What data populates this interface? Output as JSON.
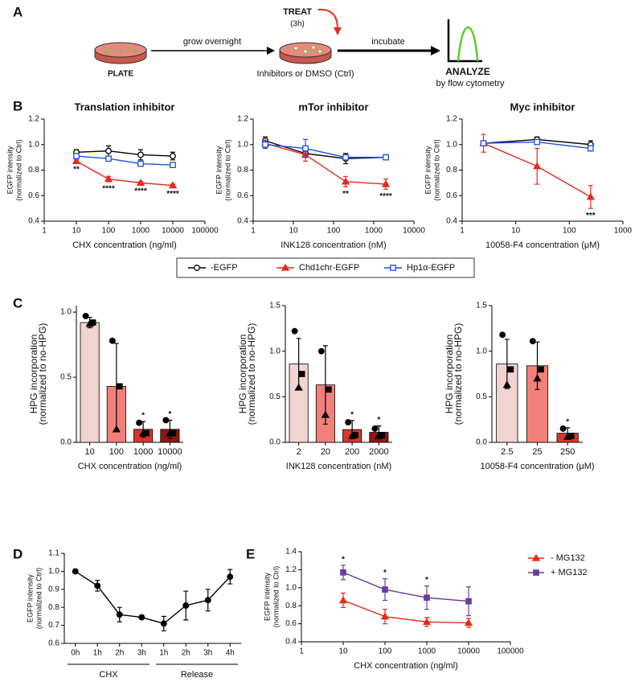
{
  "panels": [
    "A",
    "B",
    "C",
    "D",
    "E"
  ],
  "schematic": {
    "plate": "PLATE",
    "grow": "grow overnight",
    "treat": "TREAT",
    "treat_time": "(3h)",
    "treat_note": "Inhibitors or DMSO (Ctrl)",
    "incubate": "incubate",
    "analyze": "ANALYZE",
    "analyze_note": "by flow cytometry"
  },
  "chart_data": [
    {
      "type": "line",
      "title": "Translation inhibitor",
      "xlabel": "CHX concentration (ng/ml)",
      "ylabel": [
        "EGFP intensity",
        "(normalized to Ctrl)"
      ],
      "xscale": "log",
      "x": [
        10,
        100,
        1000,
        10000
      ],
      "xlim": [
        1,
        100000
      ],
      "xticks": [
        1,
        10,
        100,
        1000,
        10000,
        100000
      ],
      "ylim": [
        0.4,
        1.2
      ],
      "yticks": [
        0.4,
        0.6,
        0.8,
        {
          "value": 1.0,
          "label": "1.0"
        },
        1.2
      ],
      "legend": "below",
      "series": [
        {
          "name": "-EGFP",
          "color": "#000000",
          "marker": "circle-open",
          "values": [
            0.94,
            0.95,
            0.92,
            0.91
          ],
          "errors": [
            0.02,
            0.04,
            0.04,
            0.03
          ]
        },
        {
          "name": "Chd1chr-EGFP",
          "color": "#e8291c",
          "marker": "triangle",
          "values": [
            0.87,
            0.73,
            0.7,
            0.68
          ],
          "errors": [
            0.01,
            0.02,
            0.01,
            0.01
          ],
          "significance": [
            "**",
            "****",
            "****",
            "****"
          ],
          "significance_position": "below"
        },
        {
          "name": "Hp1α-EGFP",
          "color": "#1f4fe0",
          "marker": "square-open",
          "values": [
            0.91,
            0.89,
            0.85,
            0.84
          ],
          "errors": [
            0.02,
            0.02,
            0.01,
            0.01
          ]
        }
      ]
    },
    {
      "type": "line",
      "title": "mTor inhibitor",
      "xlabel": "INK128 concentration (nM)",
      "ylabel": [
        "EGFP intensity",
        "(normalized to Ctrl)"
      ],
      "xscale": "log",
      "x": [
        2,
        20,
        200,
        2000
      ],
      "xlim": [
        1,
        10000
      ],
      "xticks": [
        1,
        10,
        100,
        1000,
        10000
      ],
      "ylim": [
        0.4,
        1.2
      ],
      "yticks": [
        0.4,
        0.6,
        0.8,
        {
          "value": 1.0,
          "label": "1.0"
        },
        1.2
      ],
      "series": [
        {
          "color": "#000000",
          "marker": "circle-open",
          "values": [
            1.03,
            0.93,
            0.89,
            0.9
          ],
          "errors": [
            0.03,
            0.03,
            0.04,
            0.01
          ]
        },
        {
          "color": "#e8291c",
          "marker": "triangle",
          "values": [
            1.01,
            0.92,
            0.71,
            0.69
          ],
          "errors": [
            0.04,
            0.05,
            0.04,
            0.04
          ],
          "significance": [
            null,
            null,
            "**",
            "****"
          ],
          "significance_position": "below"
        },
        {
          "color": "#1f4fe0",
          "marker": "square-open",
          "values": [
            1.0,
            0.97,
            0.9,
            0.9
          ],
          "errors": [
            0.03,
            0.07,
            0.02,
            0.01
          ]
        }
      ]
    },
    {
      "type": "line",
      "title": "Myc inhibitor",
      "xlabel": "10058-F4 concentration (μM)",
      "ylabel": [
        "EGFP intensity",
        "(normalized to Ctrl)"
      ],
      "xscale": "log",
      "x": [
        2.5,
        25,
        250
      ],
      "xlim": [
        1,
        1000
      ],
      "xticks": [
        1,
        10,
        100,
        1000
      ],
      "ylim": [
        0.4,
        1.2
      ],
      "yticks": [
        0.4,
        0.6,
        0.8,
        {
          "value": 1.0,
          "label": "1.0"
        },
        1.2
      ],
      "series": [
        {
          "color": "#000000",
          "marker": "circle-open",
          "values": [
            1.01,
            1.04,
            1.0
          ],
          "errors": [
            0.02,
            0.02,
            0.03
          ]
        },
        {
          "color": "#e8291c",
          "marker": "triangle",
          "values": [
            1.01,
            0.83,
            0.59
          ],
          "errors": [
            0.07,
            0.14,
            0.09
          ],
          "significance": [
            null,
            null,
            "***"
          ],
          "significance_position": "below"
        },
        {
          "color": "#1f4fe0",
          "marker": "square-open",
          "values": [
            1.01,
            1.02,
            0.97
          ],
          "errors": [
            0.01,
            0.01,
            0.02
          ]
        }
      ]
    },
    {
      "type": "bar",
      "xlabel": "CHX concentration (ng/ml)",
      "ylabel": [
        "HPG incorporation",
        "(normalized to no-HPG)"
      ],
      "categories": [
        "10",
        "100",
        "1000",
        "10000"
      ],
      "values": [
        0.92,
        0.43,
        0.1,
        0.1
      ],
      "errors": [
        0.04,
        0.33,
        0.06,
        0.07
      ],
      "colors": [
        "#f1d3cf",
        "#f2807a",
        "#d9352b",
        "#8c1a10"
      ],
      "significance": [
        null,
        null,
        "*",
        "*"
      ],
      "points": [
        [
          0.97,
          0.92,
          0.91
        ],
        [
          0.78,
          0.43,
          0.1
        ],
        [
          0.15,
          0.07,
          0.07
        ],
        [
          0.17,
          0.07,
          0.07
        ]
      ],
      "ylim": [
        0,
        1.05
      ],
      "yticks": [
        {
          "value": 0,
          "label": "0.0"
        },
        0.5,
        {
          "value": 1.0,
          "label": "1.0"
        }
      ]
    },
    {
      "type": "bar",
      "xlabel": "INK128 concentration (nM)",
      "ylabel": [
        "HPG incorporation",
        "(normalized to no-HPG)"
      ],
      "categories": [
        "2",
        "20",
        "200",
        "2000"
      ],
      "values": [
        0.86,
        0.63,
        0.14,
        0.11
      ],
      "errors": [
        0.28,
        0.43,
        0.1,
        0.07
      ],
      "colors": [
        "#f1d3cf",
        "#f2807a",
        "#d9352b",
        "#8c1a10"
      ],
      "significance": [
        null,
        null,
        "*",
        "*"
      ],
      "points": [
        [
          1.22,
          0.75,
          0.6
        ],
        [
          1.0,
          0.58,
          0.3
        ],
        [
          0.22,
          0.08,
          0.07
        ],
        [
          0.15,
          0.08,
          0.07
        ]
      ],
      "ylim": [
        0,
        1.5
      ],
      "yticks": [
        {
          "value": 0,
          "label": "0.0"
        },
        0.5,
        {
          "value": 1.0,
          "label": "1.0"
        },
        1.5
      ]
    },
    {
      "type": "bar",
      "xlabel": "10058-F4 concentration (μM)",
      "ylabel": [
        "HPG incorporation",
        "(normalized to no-HPG)"
      ],
      "categories": [
        "2.5",
        "25",
        "250"
      ],
      "values": [
        0.86,
        0.84,
        0.1
      ],
      "errors": [
        0.27,
        0.26,
        0.06
      ],
      "colors": [
        "#f1d3cf",
        "#f2807a",
        "#d9352b"
      ],
      "significance": [
        null,
        null,
        "*"
      ],
      "points": [
        [
          1.18,
          0.8,
          0.63
        ],
        [
          1.11,
          0.8,
          0.7
        ],
        [
          0.15,
          0.07,
          0.06
        ]
      ],
      "ylim": [
        0,
        1.5
      ],
      "yticks": [
        {
          "value": 0,
          "label": "0.0"
        },
        0.5,
        {
          "value": 1.0,
          "label": "1.0"
        },
        1.5
      ]
    },
    {
      "type": "line",
      "ylabel": [
        "EGFP intensity",
        "(normalized to Ctrl)"
      ],
      "groups": [
        {
          "name": "CHX",
          "categories": [
            "0h",
            "1h",
            "2h",
            "3h"
          ]
        },
        {
          "name": "Release",
          "categories": [
            "1h",
            "2h",
            "3h",
            "4h"
          ]
        }
      ],
      "ylim": [
        0.6,
        1.1
      ],
      "yticks": [
        0.6,
        0.7,
        0.8,
        0.9,
        {
          "value": 1.0,
          "label": "1.0"
        },
        1.1
      ],
      "series": [
        {
          "color": "#000000",
          "marker": "circle",
          "values": [
            1.0,
            0.92,
            0.76,
            0.745,
            0.71,
            0.81,
            0.84,
            0.97
          ],
          "errors": [
            0,
            0.03,
            0.04,
            0.01,
            0.04,
            0.08,
            0.06,
            0.04
          ]
        }
      ]
    },
    {
      "type": "line",
      "xlabel": "CHX concentration (ng/ml)",
      "ylabel": [
        "EGFP intensity",
        "(normalized to Ctrl)"
      ],
      "xscale": "log",
      "x": [
        10,
        100,
        1000,
        10000
      ],
      "xlim": [
        1,
        100000
      ],
      "xticks": [
        1,
        10,
        100,
        1000,
        10000,
        100000
      ],
      "ylim": [
        0.4,
        1.4
      ],
      "yticks": [
        0.4,
        0.6,
        0.8,
        {
          "value": 1.0,
          "label": "1.0"
        },
        1.2,
        1.4
      ],
      "legend": "right",
      "series": [
        {
          "name": "- MG132",
          "color": "#e8291c",
          "marker": "triangle",
          "values": [
            0.86,
            0.68,
            0.62,
            0.61
          ],
          "errors": [
            0.08,
            0.08,
            0.05,
            0.05
          ]
        },
        {
          "name": "+ MG132",
          "color": "#6a3d9a",
          "marker": "square",
          "values": [
            1.17,
            0.98,
            0.89,
            0.85
          ],
          "errors": [
            0.08,
            0.12,
            0.13,
            0.16
          ],
          "significance": [
            "*",
            "*",
            "*",
            null
          ],
          "significance_position": "above"
        }
      ]
    }
  ]
}
